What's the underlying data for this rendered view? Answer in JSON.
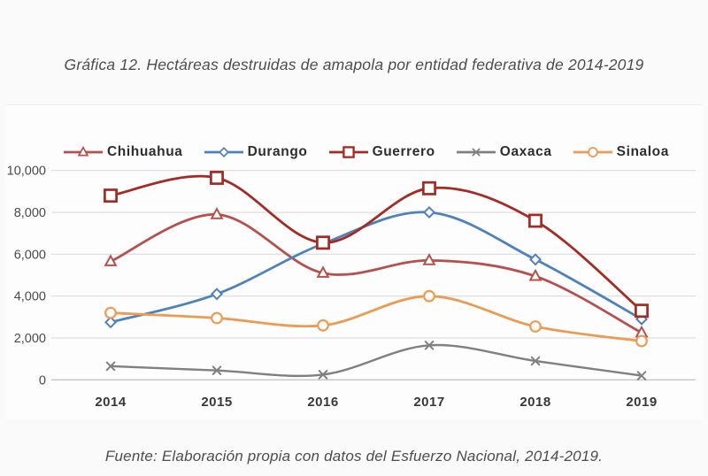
{
  "page": {
    "title": "Gráfica 12. Hectáreas destruidas de amapola por entidad federativa de 2014-2019",
    "source": "Fuente: Elaboración propia con datos del Esfuerzo Nacional, 2014-2019."
  },
  "chart_data": {
    "type": "line",
    "title": "Gráfica 12. Hectáreas destruidas de amapola por entidad federativa de 2014-2019",
    "xlabel": "",
    "ylabel": "",
    "categories": [
      "2014",
      "2015",
      "2016",
      "2017",
      "2018",
      "2019"
    ],
    "series": [
      {
        "name": "Chihuahua",
        "color": "#b5504d",
        "marker": "triangle",
        "values": [
          5650,
          7900,
          5100,
          5700,
          4950,
          2250
        ]
      },
      {
        "name": "Durango",
        "color": "#4f81bd",
        "marker": "diamond",
        "values": [
          2750,
          4100,
          6500,
          8000,
          5750,
          2900
        ]
      },
      {
        "name": "Guerrero",
        "color": "#a42a23",
        "marker": "square",
        "values": [
          8800,
          9650,
          6550,
          9150,
          7600,
          3300
        ]
      },
      {
        "name": "Oaxaca",
        "color": "#808080",
        "marker": "x",
        "values": [
          650,
          450,
          250,
          1650,
          900,
          200
        ]
      },
      {
        "name": "Sinaloa",
        "color": "#eb9b52",
        "marker": "circle",
        "values": [
          3200,
          2950,
          2600,
          4000,
          2550,
          1850
        ]
      }
    ],
    "ylim": [
      0,
      10000
    ],
    "yticks": [
      0,
      2000,
      4000,
      6000,
      8000,
      10000
    ],
    "ytick_labels": [
      "0",
      "2,000",
      "4,000",
      "6,000",
      "8,000",
      "10,000"
    ],
    "grid": "horizontal",
    "legend_position": "top",
    "line_style": "smooth",
    "marker_fill": "open"
  }
}
